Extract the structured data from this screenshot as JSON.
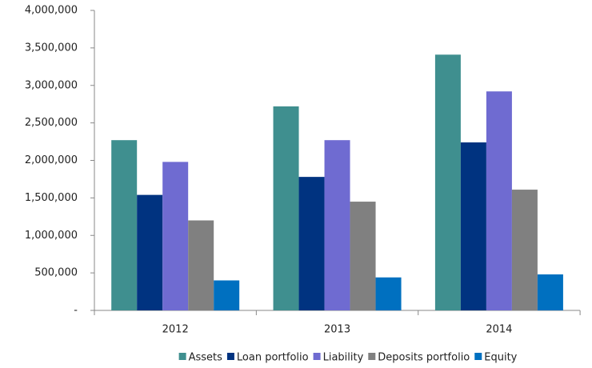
{
  "chart_data": {
    "type": "bar",
    "categories": [
      "2012",
      "2013",
      "2014"
    ],
    "series": [
      {
        "name": "Assets",
        "color": "#3f8f8f",
        "values": [
          2270000,
          2720000,
          3410000
        ]
      },
      {
        "name": "Loan portfolio",
        "color": "#003380",
        "values": [
          1540000,
          1780000,
          2240000
        ]
      },
      {
        "name": "Liability",
        "color": "#6f6bd1",
        "values": [
          1980000,
          2270000,
          2920000
        ]
      },
      {
        "name": "Deposits portfolio",
        "color": "#808080",
        "values": [
          1200000,
          1450000,
          1610000
        ]
      },
      {
        "name": "Equity",
        "color": "#0070c0",
        "values": [
          400000,
          440000,
          480000
        ]
      }
    ],
    "ylim": [
      0,
      4000000
    ],
    "yticks": [
      {
        "value": 0,
        "label": "-"
      },
      {
        "value": 500000,
        "label": "500,000"
      },
      {
        "value": 1000000,
        "label": "1,000,000"
      },
      {
        "value": 1500000,
        "label": "1,500,000"
      },
      {
        "value": 2000000,
        "label": "2,000,000"
      },
      {
        "value": 2500000,
        "label": "2,500,000"
      },
      {
        "value": 3000000,
        "label": "3,000,000"
      },
      {
        "value": 3500000,
        "label": "3,500,000"
      },
      {
        "value": 4000000,
        "label": "4,000,000"
      }
    ],
    "grid": false,
    "legend": "bottom"
  }
}
